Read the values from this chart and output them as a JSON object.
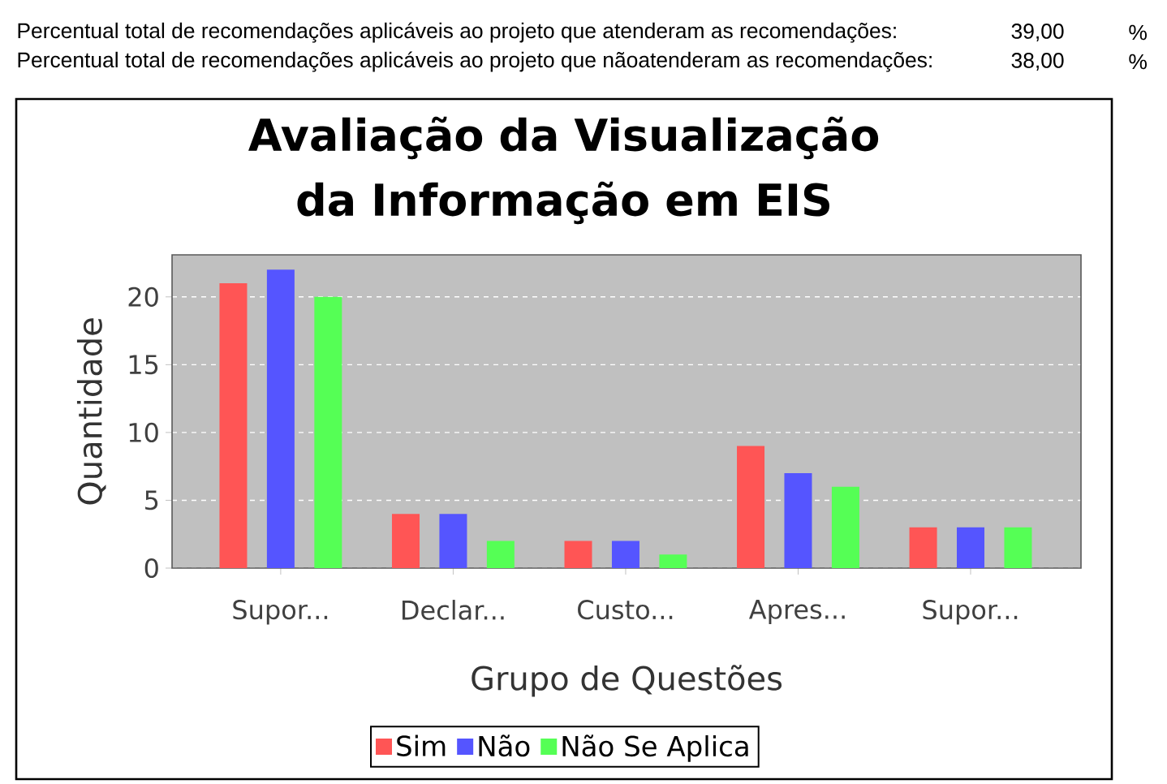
{
  "chart_data": {
    "type": "bar",
    "title": "Avaliação da Visualização da Informação em EIS",
    "xlabel": "Grupo de Questões",
    "ylabel": "Quantidade",
    "categories": [
      "Supor...",
      "Declar...",
      "Custo...",
      "Apres...",
      "Supor..."
    ],
    "series": [
      {
        "name": "Sim",
        "color": "#ff5555",
        "values": [
          21,
          4,
          2,
          9,
          3
        ]
      },
      {
        "name": "Não",
        "color": "#5555ff",
        "values": [
          22,
          4,
          2,
          7,
          3
        ]
      },
      {
        "name": "Não Se Aplica",
        "color": "#55ff55",
        "values": [
          20,
          2,
          1,
          6,
          3
        ]
      }
    ],
    "ylim": [
      0,
      23.1
    ],
    "yticks": [
      0,
      5,
      10,
      15,
      20
    ],
    "grid": "y",
    "legend": "bottom",
    "annotations": [
      "Percentual total de recomendações aplicáveis ao projeto que atenderam as recomendações:",
      "39,00",
      "%",
      "Percentual total de recomendações aplicáveis ao projeto que nãoatenderam as recomendações:",
      "38,00",
      "%"
    ]
  }
}
